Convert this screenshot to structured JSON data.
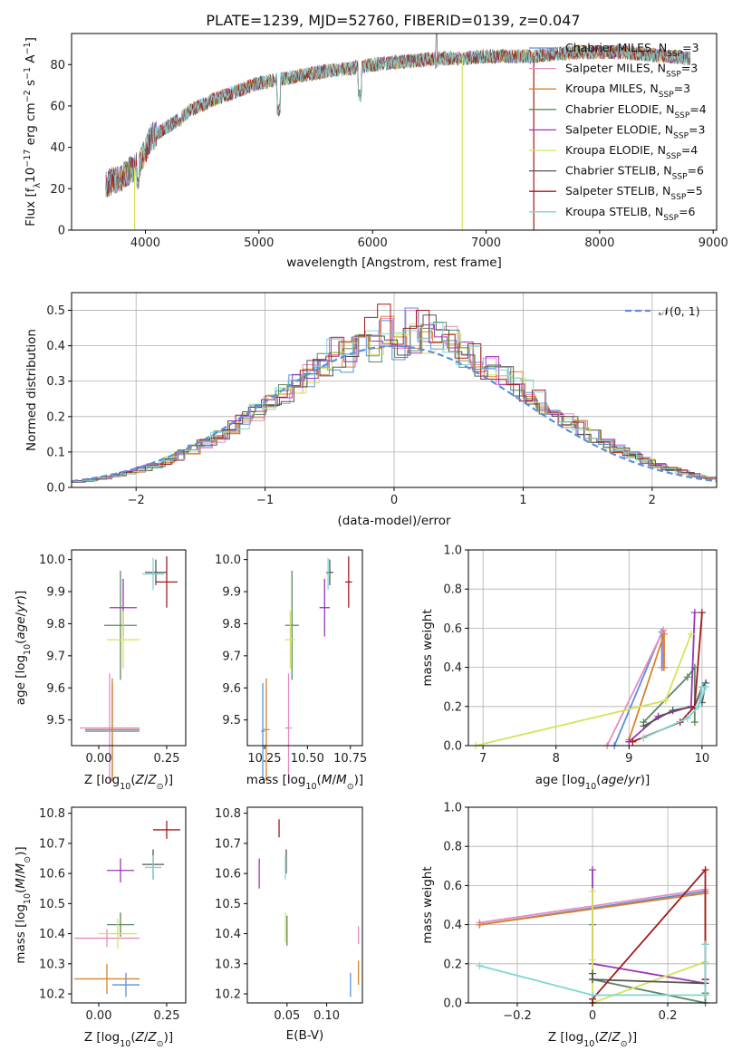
{
  "title": "PLATE=1239, MJD=52760, FIBERID=0139, z=0.047",
  "colors": {
    "Chabrier MILES": "#5b8fdc",
    "Salpeter MILES": "#e68cc4",
    "Kroupa MILES": "#d9822b",
    "Chabrier ELODIE": "#5a8a62",
    "Salpeter ELODIE": "#9b36b8",
    "Kroupa ELODIE": "#d7e25a",
    "Chabrier STELIB": "#555555",
    "Salpeter STELIB": "#a31b1b",
    "Kroupa STELIB": "#7fd6d6"
  },
  "chart_data": [
    {
      "id": "spectrum",
      "type": "line",
      "title": "PLATE=1239, MJD=52760, FIBERID=0139, z=0.047",
      "xlabel": "wavelength [Angstrom, rest frame]",
      "ylabel": "Flux [f_λ 10^-17 erg cm^-2 s^-1 A^-1]",
      "xlim": [
        3350,
        9030
      ],
      "ylim": [
        0,
        95
      ],
      "xticks": [
        4000,
        5000,
        6000,
        7000,
        8000,
        9000
      ],
      "yticks": [
        0,
        20,
        40,
        60,
        80
      ],
      "grid": false,
      "legend_position": "top-right",
      "legend": [
        {
          "name": "Chabrier MILES",
          "base": "Chabrier MILES, N",
          "sub": "SSP",
          "suffix": "=3"
        },
        {
          "name": "Salpeter MILES",
          "base": "Salpeter MILES, N",
          "sub": "SSP",
          "suffix": "=3"
        },
        {
          "name": "Kroupa MILES",
          "base": "Kroupa MILES, N",
          "sub": "SSP",
          "suffix": "=3"
        },
        {
          "name": "Chabrier ELODIE",
          "base": "Chabrier ELODIE, N",
          "sub": "SSP",
          "suffix": "=4"
        },
        {
          "name": "Salpeter ELODIE",
          "base": "Salpeter ELODIE, N",
          "sub": "SSP",
          "suffix": "=3"
        },
        {
          "name": "Kroupa ELODIE",
          "base": "Kroupa ELODIE, N",
          "sub": "SSP",
          "suffix": "=4"
        },
        {
          "name": "Chabrier STELIB",
          "base": "Chabrier STELIB, N",
          "sub": "SSP",
          "suffix": "=6"
        },
        {
          "name": "Salpeter STELIB",
          "base": "Salpeter STELIB, N",
          "sub": "SSP",
          "suffix": "=5"
        },
        {
          "name": "Kroupa STELIB",
          "base": "Kroupa STELIB, N",
          "sub": "SSP",
          "suffix": "=6"
        }
      ],
      "continuum": [
        [
          3650,
          22
        ],
        [
          3800,
          26
        ],
        [
          3950,
          32
        ],
        [
          4050,
          45
        ],
        [
          4200,
          50
        ],
        [
          4400,
          58
        ],
        [
          4600,
          63
        ],
        [
          4800,
          67
        ],
        [
          5000,
          71
        ],
        [
          5200,
          73
        ],
        [
          5400,
          75
        ],
        [
          5600,
          77
        ],
        [
          5800,
          78
        ],
        [
          6000,
          80
        ],
        [
          6200,
          81
        ],
        [
          6400,
          82
        ],
        [
          6600,
          83
        ],
        [
          6800,
          83
        ],
        [
          7000,
          84
        ],
        [
          7200,
          84
        ],
        [
          7400,
          84
        ],
        [
          7600,
          85
        ],
        [
          7800,
          86
        ],
        [
          8000,
          86
        ],
        [
          8200,
          86
        ],
        [
          8400,
          85
        ],
        [
          8600,
          84
        ],
        [
          8800,
          83
        ]
      ],
      "dips": [
        {
          "x": 3935,
          "y": 20
        },
        {
          "x": 4305,
          "y": 50
        },
        {
          "x": 5175,
          "y": 55
        },
        {
          "x": 5890,
          "y": 62
        },
        {
          "x": 6563,
          "y": 78
        }
      ],
      "emission": [
        {
          "x": 6563,
          "y": 96
        }
      ],
      "cutoffs": [
        {
          "series": "Kroupa ELODIE",
          "x": 3905
        },
        {
          "series": "Kroupa ELODIE",
          "x": 6790
        },
        {
          "series": "Salpeter STELIB",
          "x": 7420
        }
      ]
    },
    {
      "id": "residuals",
      "type": "histogram",
      "xlabel": "(data-model)/error",
      "ylabel": "Normed distribution",
      "xlim": [
        -2.5,
        2.5
      ],
      "ylim": [
        0,
        0.55
      ],
      "xticks": [
        -2,
        -1,
        0,
        1,
        2
      ],
      "yticks": [
        0.0,
        0.1,
        0.2,
        0.3,
        0.4,
        0.5
      ],
      "grid": true,
      "legend_position": "top-right",
      "reference": {
        "label": "𝒩(0, 1)",
        "type": "gaussian",
        "mean": 0,
        "sigma": 1
      },
      "bin_width": 0.1
    },
    {
      "id": "age-vs-Z",
      "type": "scatter",
      "xlabel": "Z [log10(Z/Z⊙)]",
      "ylabel": "age [log10(age/yr)]",
      "xlim": [
        -0.1,
        0.32
      ],
      "ylim": [
        9.42,
        10.03
      ],
      "xticks": [
        0.0,
        0.25
      ],
      "yticks": [
        9.5,
        9.6,
        9.7,
        9.8,
        9.9,
        10.0
      ],
      "points": [
        {
          "series": "Chabrier MILES",
          "x": 0.05,
          "y": 9.465,
          "xerr": 0.1,
          "yerr": 0.15
        },
        {
          "series": "Salpeter MILES",
          "x": 0.04,
          "y": 9.475,
          "xerr": 0.11,
          "yerr": 0.17
        },
        {
          "series": "Kroupa MILES",
          "x": 0.05,
          "y": 9.47,
          "xerr": 0.1,
          "yerr": 0.16
        },
        {
          "series": "Chabrier ELODIE",
          "x": 0.08,
          "y": 9.795,
          "xerr": 0.06,
          "yerr": 0.17
        },
        {
          "series": "Salpeter ELODIE",
          "x": 0.09,
          "y": 9.85,
          "xerr": 0.05,
          "yerr": 0.09
        },
        {
          "series": "Kroupa ELODIE",
          "x": 0.09,
          "y": 9.75,
          "xerr": 0.06,
          "yerr": 0.09
        },
        {
          "series": "Chabrier STELIB",
          "x": 0.21,
          "y": 9.96,
          "xerr": 0.04,
          "yerr": 0.04
        },
        {
          "series": "Salpeter STELIB",
          "x": 0.25,
          "y": 9.93,
          "xerr": 0.04,
          "yerr": 0.08
        },
        {
          "series": "Kroupa STELIB",
          "x": 0.2,
          "y": 9.955,
          "xerr": 0.04,
          "yerr": 0.05
        }
      ]
    },
    {
      "id": "age-vs-mass",
      "type": "scatter",
      "xlabel": "mass [log10(M/M⊙)]",
      "ylabel": "",
      "xlim": [
        10.15,
        10.82
      ],
      "ylim": [
        9.42,
        10.03
      ],
      "xticks": [
        10.25,
        10.5,
        10.75
      ],
      "yticks": [
        9.5,
        9.6,
        9.7,
        9.8,
        9.9,
        10.0
      ],
      "points": [
        {
          "series": "Chabrier MILES",
          "x": 10.24,
          "y": 9.465,
          "xerr": 0.01,
          "yerr": 0.15
        },
        {
          "series": "Salpeter MILES",
          "x": 10.39,
          "y": 9.475,
          "xerr": 0.02,
          "yerr": 0.17
        },
        {
          "series": "Kroupa MILES",
          "x": 10.26,
          "y": 9.47,
          "xerr": 0.02,
          "yerr": 0.16
        },
        {
          "series": "Chabrier ELODIE",
          "x": 10.41,
          "y": 9.795,
          "xerr": 0.04,
          "yerr": 0.17
        },
        {
          "series": "Salpeter ELODIE",
          "x": 10.6,
          "y": 9.85,
          "xerr": 0.03,
          "yerr": 0.09
        },
        {
          "series": "Kroupa ELODIE",
          "x": 10.4,
          "y": 9.75,
          "xerr": 0.03,
          "yerr": 0.09
        },
        {
          "series": "Chabrier STELIB",
          "x": 10.63,
          "y": 9.96,
          "xerr": 0.02,
          "yerr": 0.04
        },
        {
          "series": "Salpeter STELIB",
          "x": 10.74,
          "y": 9.93,
          "xerr": 0.02,
          "yerr": 0.08
        },
        {
          "series": "Kroupa STELIB",
          "x": 10.62,
          "y": 9.955,
          "xerr": 0.01,
          "yerr": 0.05
        }
      ]
    },
    {
      "id": "weights-vs-age",
      "type": "line",
      "xlabel": "age [log10(age/yr)]",
      "ylabel": "mass weight",
      "xlim": [
        6.8,
        10.2
      ],
      "ylim": [
        0,
        1
      ],
      "xticks": [
        7,
        8,
        9,
        10
      ],
      "yticks": [
        0.0,
        0.2,
        0.4,
        0.6,
        0.8,
        1.0
      ],
      "grid": true,
      "series": [
        {
          "name": "Chabrier MILES",
          "x": [
            8.8,
            9.45,
            9.45
          ],
          "y": [
            0.0,
            0.58,
            0.4
          ]
        },
        {
          "name": "Salpeter MILES",
          "x": [
            8.7,
            9.47,
            9.47
          ],
          "y": [
            0.0,
            0.59,
            0.4
          ]
        },
        {
          "name": "Kroupa MILES",
          "x": [
            9.0,
            9.48,
            9.48
          ],
          "y": [
            0.03,
            0.57,
            0.4
          ]
        },
        {
          "name": "Chabrier ELODIE",
          "x": [
            9.2,
            9.8,
            9.9,
            9.9
          ],
          "y": [
            0.12,
            0.35,
            0.4,
            0.12
          ]
        },
        {
          "name": "Salpeter ELODIE",
          "x": [
            9.0,
            9.4,
            9.85,
            9.9
          ],
          "y": [
            0.02,
            0.15,
            0.2,
            0.68
          ]
        },
        {
          "name": "Kroupa ELODIE",
          "x": [
            6.9,
            9.5,
            9.85
          ],
          "y": [
            0.0,
            0.23,
            0.57
          ]
        },
        {
          "name": "Chabrier STELIB",
          "x": [
            9.2,
            9.6,
            9.9,
            10.0,
            10.05,
            10.0
          ],
          "y": [
            0.1,
            0.18,
            0.2,
            0.3,
            0.32,
            0.22
          ]
        },
        {
          "name": "Salpeter STELIB",
          "x": [
            9.05,
            9.7,
            9.9,
            10.0
          ],
          "y": [
            0.02,
            0.12,
            0.2,
            0.68
          ]
        },
        {
          "name": "Kroupa STELIB",
          "x": [
            9.2,
            9.8,
            9.95,
            10.0,
            10.05,
            9.95
          ],
          "y": [
            0.04,
            0.14,
            0.2,
            0.3,
            0.3,
            0.2
          ]
        }
      ]
    },
    {
      "id": "mass-vs-Z",
      "type": "scatter",
      "xlabel": "Z [log10(Z/Z⊙)]",
      "ylabel": "mass [log10(M/M⊙)]",
      "xlim": [
        -0.1,
        0.32
      ],
      "ylim": [
        10.17,
        10.82
      ],
      "xticks": [
        0.0,
        0.25
      ],
      "yticks": [
        10.2,
        10.3,
        10.4,
        10.5,
        10.6,
        10.7,
        10.8
      ],
      "points": [
        {
          "series": "Chabrier MILES",
          "x": 0.1,
          "y": 10.23,
          "xerr": 0.05,
          "yerr": 0.04
        },
        {
          "series": "Salpeter MILES",
          "x": 0.03,
          "y": 10.385,
          "xerr": 0.12,
          "yerr": 0.03
        },
        {
          "series": "Kroupa MILES",
          "x": 0.03,
          "y": 10.25,
          "xerr": 0.12,
          "yerr": 0.05
        },
        {
          "series": "Chabrier ELODIE",
          "x": 0.08,
          "y": 10.43,
          "xerr": 0.05,
          "yerr": 0.04
        },
        {
          "series": "Salpeter ELODIE",
          "x": 0.08,
          "y": 10.61,
          "xerr": 0.05,
          "yerr": 0.04
        },
        {
          "series": "Kroupa ELODIE",
          "x": 0.07,
          "y": 10.4,
          "xerr": 0.07,
          "yerr": 0.05
        },
        {
          "series": "Chabrier STELIB",
          "x": 0.2,
          "y": 10.63,
          "xerr": 0.04,
          "yerr": 0.05
        },
        {
          "series": "Salpeter STELIB",
          "x": 0.25,
          "y": 10.745,
          "xerr": 0.05,
          "yerr": 0.03
        },
        {
          "series": "Kroupa STELIB",
          "x": 0.2,
          "y": 10.62,
          "xerr": 0.03,
          "yerr": 0.04
        }
      ]
    },
    {
      "id": "mass-vs-EBV",
      "type": "scatter",
      "xlabel": "E(B-V)",
      "ylabel": "",
      "xlim": [
        0.0,
        0.145
      ],
      "ylim": [
        10.17,
        10.82
      ],
      "xticks": [
        0.05,
        0.1
      ],
      "yticks": [
        10.2,
        10.3,
        10.4,
        10.5,
        10.6,
        10.7,
        10.8
      ],
      "points": [
        {
          "series": "Chabrier MILES",
          "x": 0.13,
          "y": 10.23,
          "xerr": 0.0,
          "yerr": 0.04
        },
        {
          "series": "Salpeter MILES",
          "x": 0.14,
          "y": 10.395,
          "xerr": 0.0,
          "yerr": 0.03
        },
        {
          "series": "Kroupa MILES",
          "x": 0.14,
          "y": 10.27,
          "xerr": 0.0,
          "yerr": 0.04
        },
        {
          "series": "Chabrier ELODIE",
          "x": 0.05,
          "y": 10.41,
          "xerr": 0.0,
          "yerr": 0.05
        },
        {
          "series": "Salpeter ELODIE",
          "x": 0.015,
          "y": 10.6,
          "xerr": 0.0,
          "yerr": 0.05
        },
        {
          "series": "Kroupa ELODIE",
          "x": 0.048,
          "y": 10.42,
          "xerr": 0.0,
          "yerr": 0.05
        },
        {
          "series": "Chabrier STELIB",
          "x": 0.049,
          "y": 10.64,
          "xerr": 0.0,
          "yerr": 0.04
        },
        {
          "series": "Salpeter STELIB",
          "x": 0.04,
          "y": 10.75,
          "xerr": 0.0,
          "yerr": 0.03
        },
        {
          "series": "Kroupa STELIB",
          "x": 0.048,
          "y": 10.62,
          "xerr": 0.0,
          "yerr": 0.04
        }
      ]
    },
    {
      "id": "weights-vs-Z",
      "type": "line",
      "xlabel": "Z [log10(Z/Z⊙)]",
      "ylabel": "mass weight",
      "xlim": [
        -0.33,
        0.33
      ],
      "ylim": [
        0,
        1
      ],
      "xticks": [
        -0.2,
        0.0,
        0.2
      ],
      "yticks": [
        0.0,
        0.2,
        0.4,
        0.6,
        0.8,
        1.0
      ],
      "grid": true,
      "series": [
        {
          "name": "Chabrier MILES",
          "x": [
            -0.3,
            0.3,
            0.3
          ],
          "y": [
            0.4,
            0.57,
            0.04
          ]
        },
        {
          "name": "Salpeter MILES",
          "x": [
            -0.3,
            0.3,
            0.3
          ],
          "y": [
            0.41,
            0.58,
            0.0
          ]
        },
        {
          "name": "Kroupa MILES",
          "x": [
            -0.3,
            0.3,
            0.3
          ],
          "y": [
            0.4,
            0.56,
            0.04
          ]
        },
        {
          "name": "Chabrier ELODIE",
          "x": [
            0.0,
            0.0,
            0.3,
            0.3
          ],
          "y": [
            0.4,
            0.12,
            0.0,
            0.05
          ]
        },
        {
          "name": "Salpeter ELODIE",
          "x": [
            0.0,
            0.0,
            0.3,
            0.3
          ],
          "y": [
            0.68,
            0.2,
            0.1,
            0.12
          ]
        },
        {
          "name": "Kroupa ELODIE",
          "x": [
            0.0,
            0.0,
            0.0,
            0.3
          ],
          "y": [
            0.57,
            0.22,
            0.0,
            0.21
          ]
        },
        {
          "name": "Chabrier STELIB",
          "x": [
            0.0,
            0.0,
            0.3,
            0.3,
            0.3
          ],
          "y": [
            0.15,
            0.12,
            0.1,
            0.3,
            0.2
          ]
        },
        {
          "name": "Salpeter STELIB",
          "x": [
            0.0,
            0.0,
            0.3,
            0.3
          ],
          "y": [
            0.0,
            0.02,
            0.68,
            0.12
          ]
        },
        {
          "name": "Kroupa STELIB",
          "x": [
            -0.3,
            0.0,
            0.3,
            0.3,
            0.3
          ],
          "y": [
            0.19,
            0.04,
            0.04,
            0.3,
            0.2
          ]
        }
      ]
    }
  ]
}
